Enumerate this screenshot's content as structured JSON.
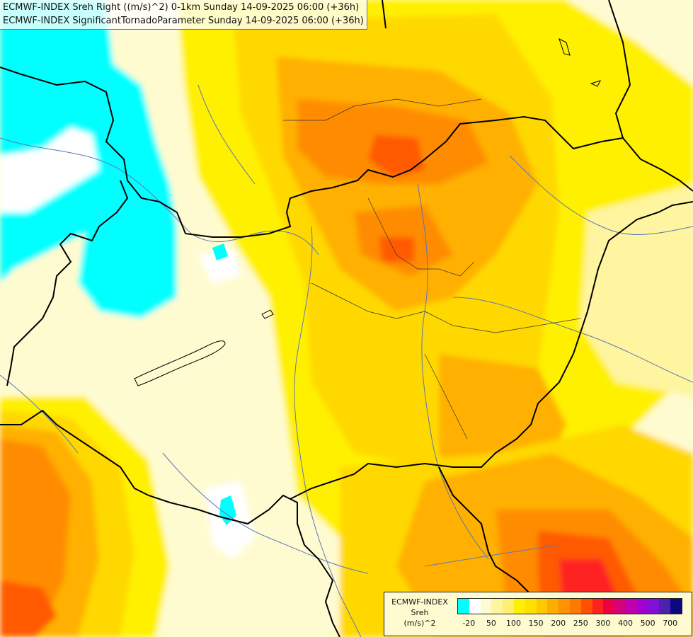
{
  "titles": {
    "line1": "ECMWF-INDEX Sreh Right ((m/s)^2) 0-1km Sunday 14-09-2025 06:00 (+36h)",
    "line2": "ECMWF-INDEX SignificantTornadoParameter Sunday 14-09-2025 06:00 (+36h)"
  },
  "legend": {
    "title_lines": [
      "ECMWF-INDEX",
      "Sreh",
      "(m/s)^2"
    ],
    "colors": [
      "#00ffff",
      "#ffffff",
      "#fffbd0",
      "#fff4a0",
      "#fff070",
      "#fff000",
      "#ffe000",
      "#ffc800",
      "#ffae00",
      "#ff9200",
      "#ff7800",
      "#ff5000",
      "#ff2020",
      "#ee0044",
      "#d4007c",
      "#c000b0",
      "#a000d0",
      "#7e10d8",
      "#4e20b0",
      "#0a0a80"
    ],
    "ticks": [
      "-20",
      "50",
      "100",
      "150",
      "200",
      "250",
      "300",
      "400",
      "500",
      "700"
    ]
  },
  "colors": {
    "cyan": "#00ffff",
    "pale": "#fffbd0",
    "light_yellow": "#fff4a0",
    "yellow": "#fff000",
    "gold": "#ffd800",
    "orange": "#ffb000",
    "dark_orange": "#ff8c00",
    "red_orange": "#ff5a00",
    "red": "#ff2020",
    "border": "#000000",
    "river": "#5a78b4"
  }
}
